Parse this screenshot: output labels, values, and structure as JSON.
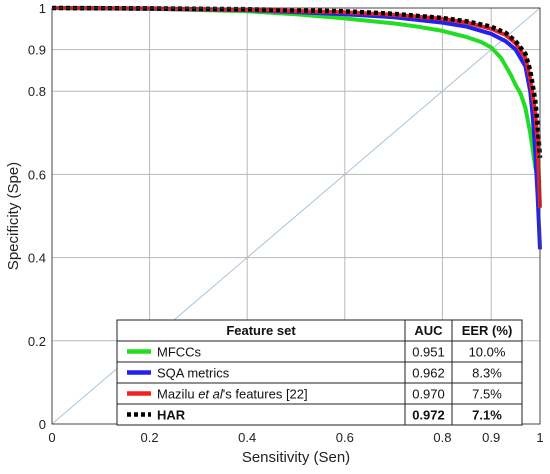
{
  "chart_data": {
    "type": "line",
    "title": "",
    "xlabel": "Sensitivity (Sen)",
    "ylabel": "Specificity (Spe)",
    "xlim": [
      0,
      1
    ],
    "ylim": [
      0,
      1
    ],
    "x_ticks": [
      {
        "value": 0,
        "label": "0"
      },
      {
        "value": 0.2,
        "label": "0.2"
      },
      {
        "value": 0.4,
        "label": "0.4"
      },
      {
        "value": 0.6,
        "label": "0.6"
      },
      {
        "value": 0.8,
        "label": "0.8"
      },
      {
        "value": 0.9,
        "label": "0.9"
      },
      {
        "value": 1,
        "label": "1"
      }
    ],
    "y_ticks": [
      {
        "value": 0,
        "label": "0"
      },
      {
        "value": 0.2,
        "label": "0.2"
      },
      {
        "value": 0.4,
        "label": "0.4"
      },
      {
        "value": 0.6,
        "label": "0.6"
      },
      {
        "value": 0.8,
        "label": "0.8"
      },
      {
        "value": 0.9,
        "label": "0.9"
      },
      {
        "value": 1,
        "label": "1"
      }
    ],
    "grid": true,
    "reference_line": {
      "x": [
        0,
        1
      ],
      "y": [
        0,
        1
      ],
      "color": "#a9c4de"
    },
    "series": [
      {
        "name": "MFCCs",
        "color": "#22dd22",
        "dash": "solid",
        "x": [
          0,
          0.2,
          0.4,
          0.5,
          0.6,
          0.7,
          0.75,
          0.8,
          0.85,
          0.88,
          0.9,
          0.92,
          0.94,
          0.95,
          0.96,
          0.97,
          0.98,
          0.985,
          0.99,
          0.995,
          1.0
        ],
        "y": [
          1.0,
          0.998,
          0.992,
          0.985,
          0.975,
          0.963,
          0.955,
          0.945,
          0.93,
          0.918,
          0.905,
          0.88,
          0.84,
          0.815,
          0.795,
          0.76,
          0.7,
          0.66,
          0.62,
          0.59,
          0.58
        ]
      },
      {
        "name": "SQA metrics",
        "color": "#2222ee",
        "dash": "solid",
        "x": [
          0,
          0.2,
          0.4,
          0.6,
          0.7,
          0.8,
          0.85,
          0.9,
          0.93,
          0.95,
          0.97,
          0.98,
          0.985,
          0.99,
          0.995,
          1.0
        ],
        "y": [
          1.0,
          0.998,
          0.995,
          0.985,
          0.978,
          0.965,
          0.955,
          0.938,
          0.92,
          0.9,
          0.86,
          0.8,
          0.74,
          0.66,
          0.55,
          0.42
        ]
      },
      {
        "name": "Mazilu et al's features [22]",
        "color": "#ee2222",
        "dash": "solid",
        "x": [
          0,
          0.2,
          0.4,
          0.6,
          0.7,
          0.8,
          0.85,
          0.9,
          0.93,
          0.95,
          0.97,
          0.98,
          0.99,
          0.995,
          1.0
        ],
        "y": [
          1.0,
          0.999,
          0.996,
          0.99,
          0.984,
          0.974,
          0.965,
          0.95,
          0.935,
          0.915,
          0.88,
          0.83,
          0.75,
          0.68,
          0.52
        ]
      },
      {
        "name": "HAR",
        "color": "#000000",
        "dash": "dotted",
        "x": [
          0,
          0.2,
          0.4,
          0.6,
          0.7,
          0.8,
          0.85,
          0.9,
          0.93,
          0.95,
          0.97,
          0.98,
          0.99,
          0.995,
          1.0
        ],
        "y": [
          1.0,
          0.999,
          0.997,
          0.992,
          0.986,
          0.976,
          0.968,
          0.955,
          0.94,
          0.92,
          0.89,
          0.85,
          0.78,
          0.72,
          0.64
        ]
      }
    ],
    "legend_table": {
      "placement": "bottom-right",
      "headers": [
        "Feature set",
        "AUC",
        "EER (%)"
      ],
      "rows": [
        {
          "label": "MFCCs",
          "label_pre": "",
          "label_italic": "",
          "label_post": "",
          "auc": "0.951",
          "eer": "10.0%",
          "color": "#22dd22",
          "dash": "solid",
          "bold": false
        },
        {
          "label": "SQA metrics",
          "label_pre": "",
          "label_italic": "",
          "label_post": "",
          "auc": "0.962",
          "eer": "8.3%",
          "color": "#2222ee",
          "dash": "solid",
          "bold": false
        },
        {
          "label": "Mazilu et al's features [22]",
          "label_pre": "Mazilu ",
          "label_italic": "et al",
          "label_post": "'s features [22]",
          "auc": "0.970",
          "eer": "7.5%",
          "color": "#ee2222",
          "dash": "solid",
          "bold": false
        },
        {
          "label": "HAR",
          "label_pre": "",
          "label_italic": "",
          "label_post": "",
          "auc": "0.972",
          "eer": "7.1%",
          "color": "#000000",
          "dash": "dotted",
          "bold": true
        }
      ]
    }
  }
}
